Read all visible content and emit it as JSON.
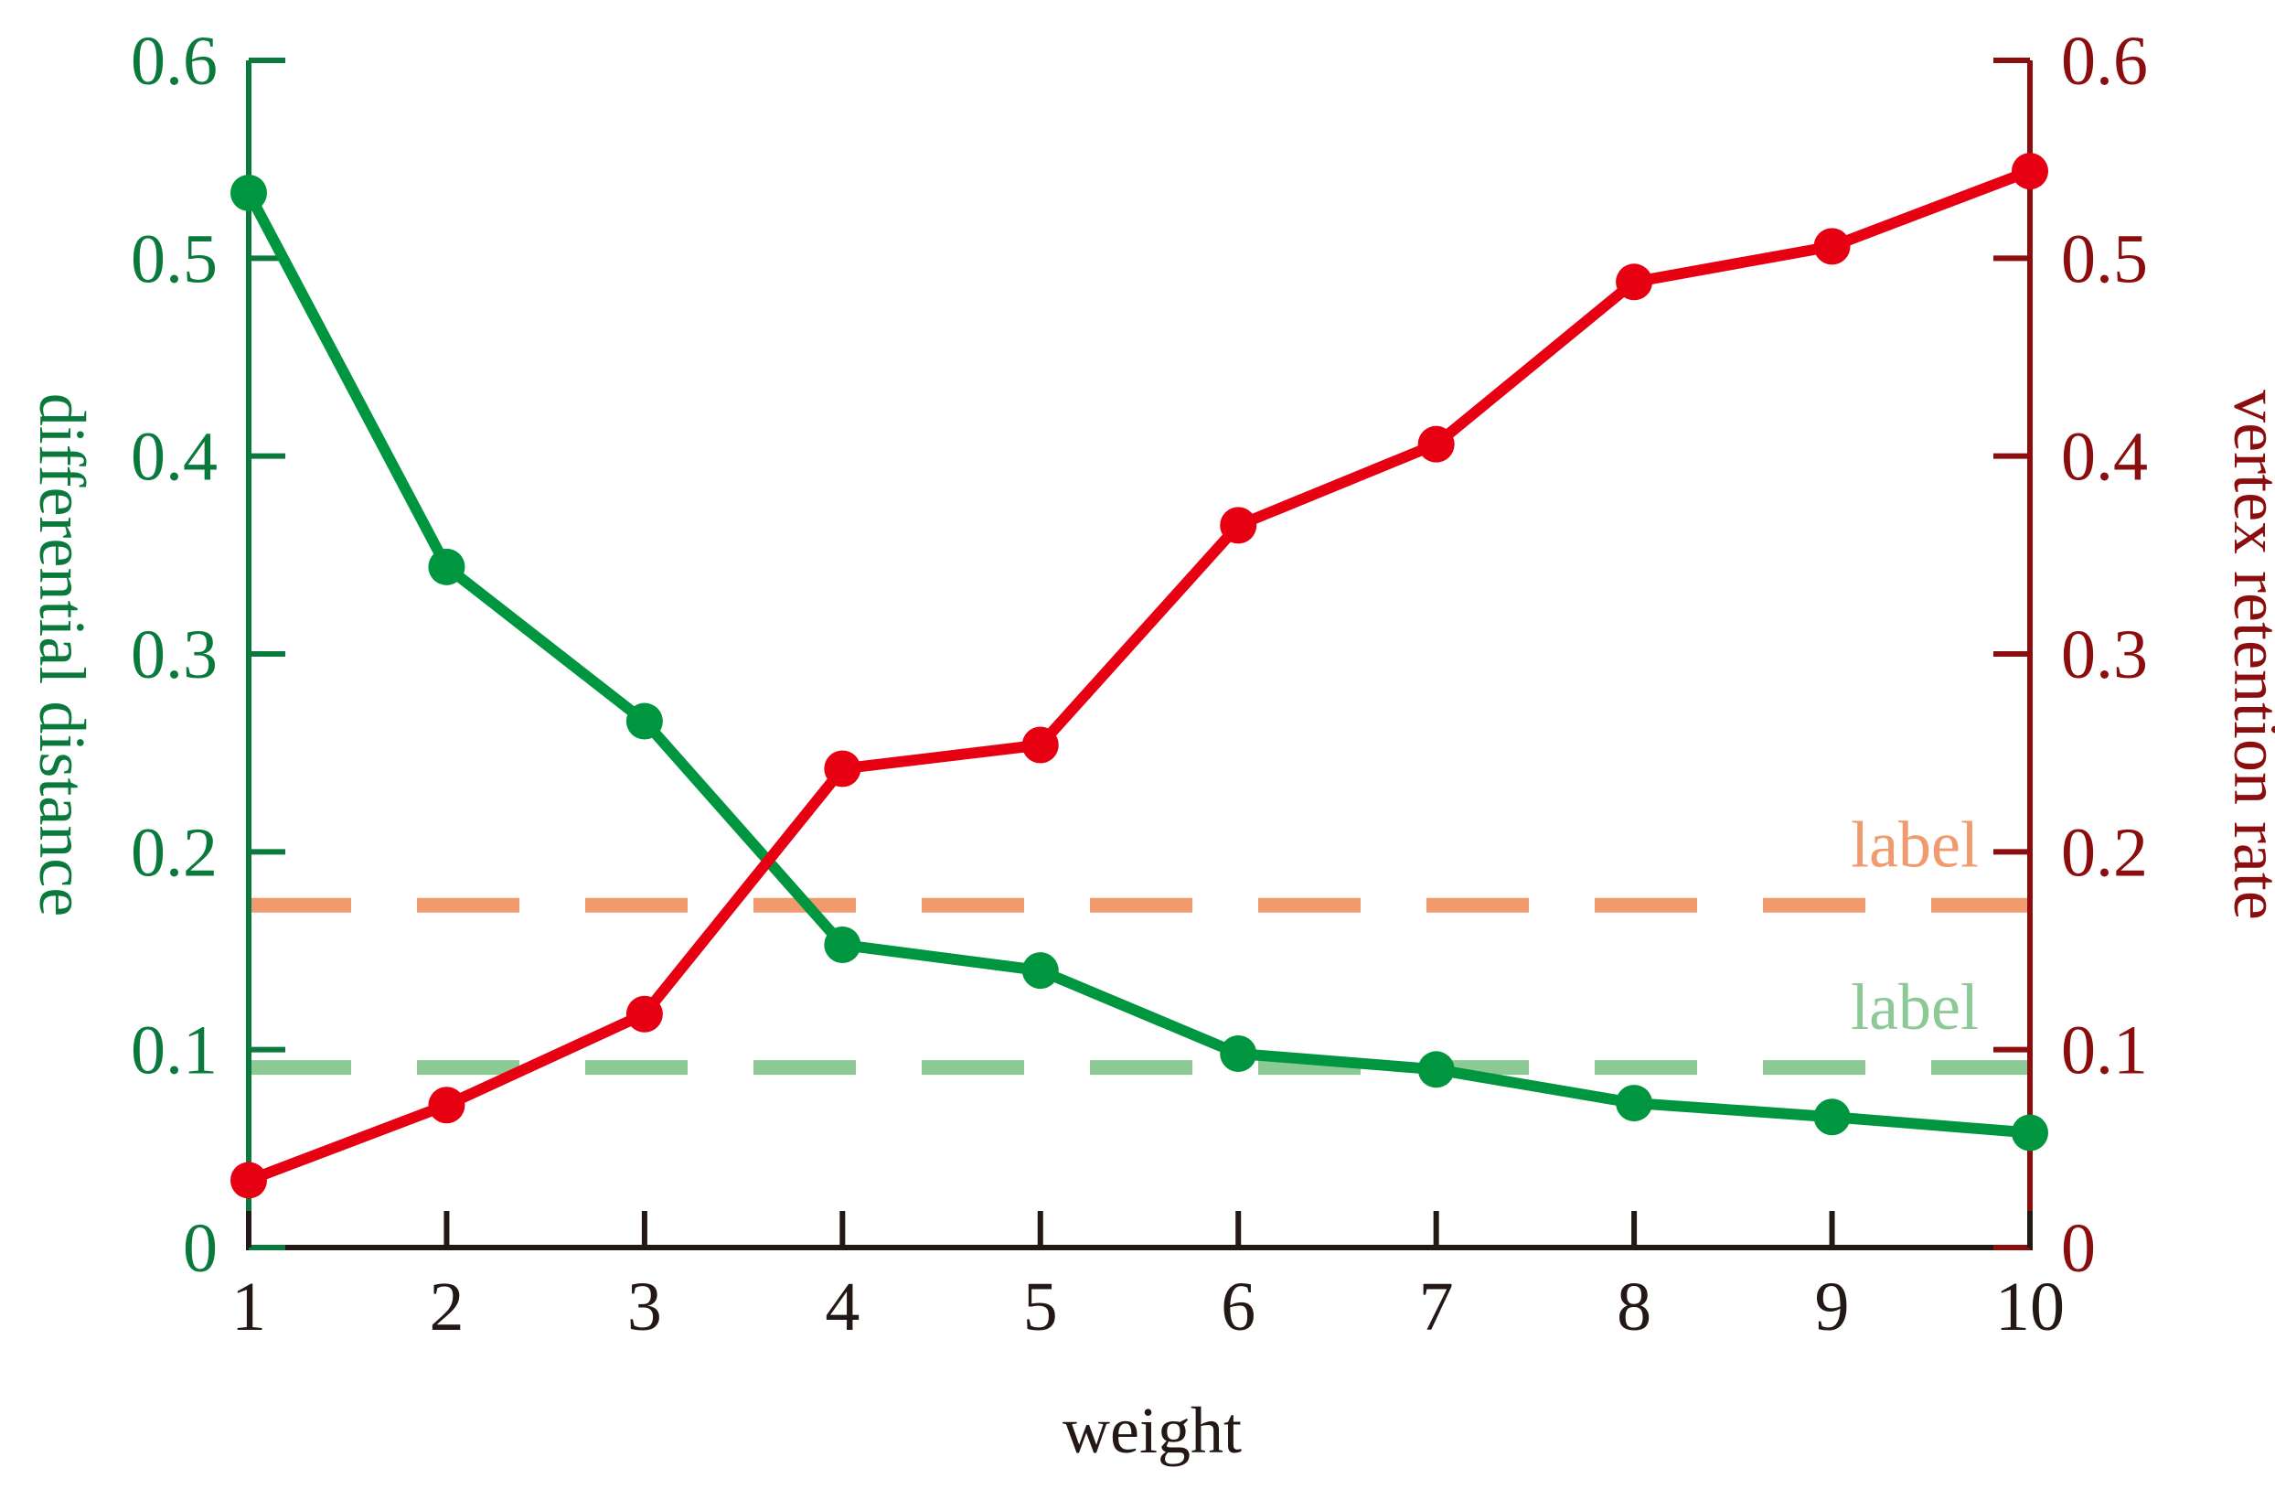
{
  "colors": {
    "left_axis": "#0a7a3c",
    "right_axis": "#8b0d0d",
    "bottom_axis": "#231815",
    "green_series": "#00963f",
    "red_series": "#e60012",
    "orange_ref": "#f09a6e",
    "lightgreen_ref": "#8cca95"
  },
  "chart_data": {
    "type": "line",
    "xlabel": "weight",
    "ylabel_left": "differential distance",
    "ylabel_right": "vertex retention rate",
    "x": [
      1,
      2,
      3,
      4,
      5,
      6,
      7,
      8,
      9,
      10
    ],
    "x_ticks": [
      "1",
      "2",
      "3",
      "4",
      "5",
      "6",
      "7",
      "8",
      "9",
      "10"
    ],
    "xlim": [
      1,
      10
    ],
    "ylim_left": [
      0,
      0.6
    ],
    "ylim_right": [
      0,
      0.6
    ],
    "y_ticks_left": [
      "0",
      "0.1",
      "0.2",
      "0.3",
      "0.4",
      "0.5",
      "0.6"
    ],
    "y_ticks_right": [
      "0",
      "0.1",
      "0.2",
      "0.3",
      "0.4",
      "0.5",
      "0.6"
    ],
    "grid": false,
    "series": [
      {
        "axis": "left",
        "values": [
          0.533,
          0.344,
          0.266,
          0.153,
          0.14,
          0.098,
          0.09,
          0.073,
          0.066,
          0.058
        ]
      },
      {
        "axis": "right",
        "values": [
          0.034,
          0.072,
          0.118,
          0.242,
          0.254,
          0.365,
          0.406,
          0.488,
          0.506,
          0.544
        ]
      }
    ],
    "reference_lines": [
      {
        "axis": "right",
        "value": 0.173,
        "style": "dashed",
        "label": "label"
      },
      {
        "axis": "left",
        "value": 0.091,
        "style": "dashed",
        "label": "label"
      }
    ]
  }
}
